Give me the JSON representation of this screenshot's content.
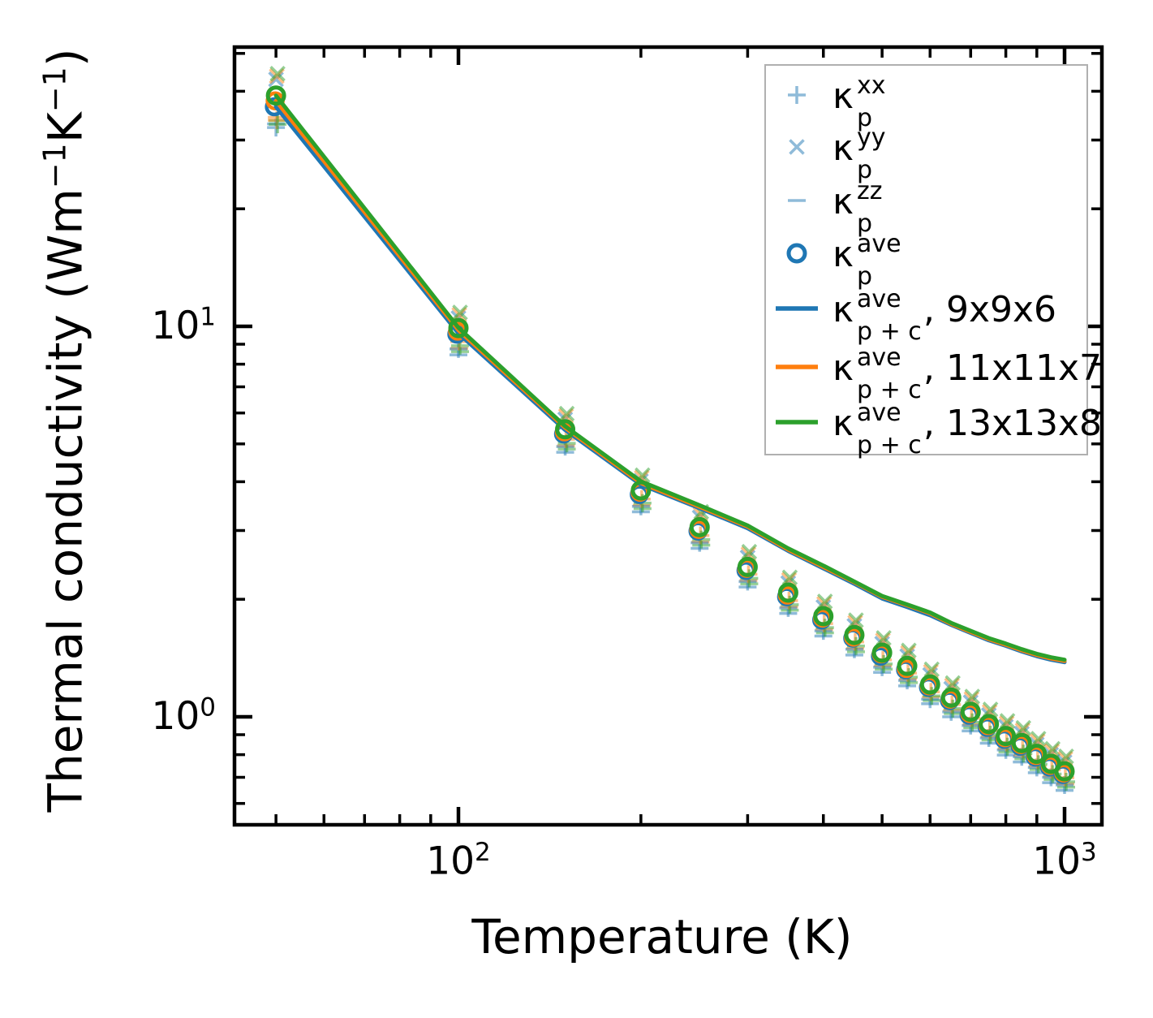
{
  "figure": {
    "xlabel": "Temperature (K)",
    "ylabel_parts": [
      [
        "t",
        "Thermal conductivity (Wm"
      ],
      [
        "sup",
        "−1"
      ],
      [
        "t",
        "K"
      ],
      [
        "sup",
        "−1"
      ],
      [
        "t",
        ")"
      ]
    ]
  },
  "axes": {
    "x": {
      "scale": "log",
      "range_K": [
        42.7,
        1152
      ],
      "major_ticks": [
        100,
        1000
      ],
      "minor_ticks": [
        50,
        60,
        70,
        80,
        90,
        200,
        300,
        400,
        500,
        600,
        700,
        800,
        900
      ],
      "tick_labels": [
        {
          "base": "10",
          "exp": "2",
          "value": 100
        },
        {
          "base": "10",
          "exp": "3",
          "value": 1000
        }
      ]
    },
    "y": {
      "scale": "log",
      "range": [
        0.53,
        51.9
      ],
      "major_ticks": [
        1,
        10
      ],
      "minor_ticks": [
        0.6,
        0.7,
        0.8,
        0.9,
        2,
        3,
        4,
        5,
        6,
        7,
        8,
        9,
        20,
        30,
        40,
        50
      ],
      "tick_labels": [
        {
          "base": "10",
          "exp": "1",
          "value": 10
        },
        {
          "base": "10",
          "exp": "0",
          "value": 1
        }
      ]
    }
  },
  "colors": {
    "blue": "#1f77b4",
    "orange": "#ff7f0e",
    "green": "#2ca02c",
    "pale_blue": "rgba(31,119,180,0.5)",
    "pale_orange": "rgba(255,127,14,0.5)",
    "pale_green": "rgba(44,160,44,0.5)",
    "legend_border": "#b0b0b0",
    "axis": "#000000"
  },
  "legend": {
    "items": [
      {
        "marker": "plus",
        "color_key": "pale_blue",
        "base": "κ",
        "sup": "xx",
        "sub": "p",
        "suffix": ""
      },
      {
        "marker": "cross",
        "color_key": "pale_blue",
        "base": "κ",
        "sup": "yy",
        "sub": "p",
        "suffix": ""
      },
      {
        "marker": "dash",
        "color_key": "pale_blue",
        "base": "κ",
        "sup": "zz",
        "sub": "p",
        "suffix": ""
      },
      {
        "marker": "circle",
        "color_key": "blue",
        "base": "κ",
        "sup": "ave",
        "sub": "p",
        "suffix": ""
      },
      {
        "marker": "line",
        "color_key": "blue",
        "base": "κ",
        "sup": "ave",
        "sub": "p + c",
        "suffix": ", 9x9x6"
      },
      {
        "marker": "line",
        "color_key": "orange",
        "base": "κ",
        "sup": "ave",
        "sub": "p + c",
        "suffix": ", 11x11x7"
      },
      {
        "marker": "line",
        "color_key": "green",
        "base": "κ",
        "sup": "ave",
        "sub": "p + c",
        "suffix": ", 13x13x8"
      }
    ]
  },
  "chart_data": {
    "type": "line+scatter",
    "xlabel": "Temperature (K)",
    "ylabel": "Thermal conductivity (Wm-1K-1)",
    "x_scale": "log",
    "y_scale": "log",
    "xlim": [
      42.7,
      1152
    ],
    "ylim": [
      0.53,
      51.9
    ],
    "legend_position": "upper right",
    "x_temperatures_K": [
      50,
      100,
      150,
      200,
      250,
      300,
      350,
      400,
      450,
      500,
      550,
      600,
      650,
      700,
      750,
      800,
      850,
      900,
      950,
      1000
    ],
    "scatter_series": [
      {
        "name": "kappa_p_xx",
        "marker": "plus",
        "color_key": "pale_blue",
        "values": [
          32.3,
          8.75,
          4.92,
          3.46,
          2.79,
          2.22,
          1.9,
          1.66,
          1.49,
          1.34,
          1.24,
          1.11,
          1.03,
          0.95,
          0.883,
          0.823,
          0.79,
          0.742,
          0.7,
          0.669
        ]
      },
      {
        "name": "kappa_p_yy",
        "marker": "cross",
        "color_key": "pale_blue",
        "values": [
          42.9,
          10.5,
          5.78,
          4.02,
          3.24,
          2.56,
          2.2,
          1.91,
          1.71,
          1.54,
          1.43,
          1.28,
          1.18,
          1.09,
          1.01,
          0.944,
          0.906,
          0.85,
          0.801,
          0.766
        ]
      },
      {
        "name": "kappa_p_zz",
        "marker": "dash",
        "color_key": "pale_blue",
        "values": [
          33.0,
          8.45,
          4.76,
          3.35,
          2.7,
          2.15,
          1.84,
          1.61,
          1.44,
          1.3,
          1.2,
          1.08,
          1.0,
          0.92,
          0.856,
          0.798,
          0.766,
          0.719,
          0.678,
          0.648
        ]
      },
      {
        "name": "kappa_p_ave_9x9x6",
        "marker": "circle",
        "color_key": "blue",
        "values": [
          36.5,
          9.55,
          5.3,
          3.71,
          2.99,
          2.37,
          2.03,
          1.77,
          1.59,
          1.43,
          1.32,
          1.19,
          1.1,
          1.01,
          0.94,
          0.876,
          0.841,
          0.789,
          0.744,
          0.712
        ]
      },
      {
        "name": "kappa_p_ave_11x11x7",
        "marker": "circle",
        "color_key": "orange",
        "values": [
          37.8,
          9.72,
          5.37,
          3.76,
          3.02,
          2.4,
          2.05,
          1.79,
          1.6,
          1.45,
          1.33,
          1.2,
          1.11,
          1.02,
          0.949,
          0.884,
          0.849,
          0.796,
          0.751,
          0.718
        ]
      },
      {
        "name": "kappa_p_ave_13x13x8",
        "marker": "circle",
        "color_key": "green",
        "values": [
          39.0,
          9.9,
          5.45,
          3.8,
          3.06,
          2.42,
          2.08,
          1.81,
          1.62,
          1.46,
          1.35,
          1.21,
          1.12,
          1.03,
          0.958,
          0.893,
          0.857,
          0.804,
          0.758,
          0.725
        ]
      }
    ],
    "line_series": [
      {
        "name": "kappa_p_plus_c_ave_9x9x6",
        "color_key": "blue",
        "values": [
          36.5,
          9.6,
          5.43,
          3.93,
          3.42,
          3.04,
          2.66,
          2.4,
          2.19,
          2.01,
          1.91,
          1.82,
          1.72,
          1.64,
          1.57,
          1.52,
          1.47,
          1.43,
          1.4,
          1.38
        ]
      },
      {
        "name": "kappa_p_plus_c_ave_11x11x7",
        "color_key": "orange",
        "values": [
          37.8,
          9.78,
          5.5,
          3.97,
          3.45,
          3.07,
          2.68,
          2.42,
          2.21,
          2.03,
          1.93,
          1.84,
          1.73,
          1.65,
          1.58,
          1.53,
          1.48,
          1.44,
          1.41,
          1.39
        ]
      },
      {
        "name": "kappa_p_plus_c_ave_13x13x8",
        "color_key": "green",
        "values": [
          39.0,
          9.92,
          5.55,
          4.01,
          3.48,
          3.09,
          2.7,
          2.44,
          2.22,
          2.04,
          1.94,
          1.85,
          1.74,
          1.66,
          1.59,
          1.54,
          1.49,
          1.45,
          1.42,
          1.4
        ]
      }
    ],
    "component_echo_color_keys": [
      "pale_orange",
      "pale_green"
    ]
  }
}
